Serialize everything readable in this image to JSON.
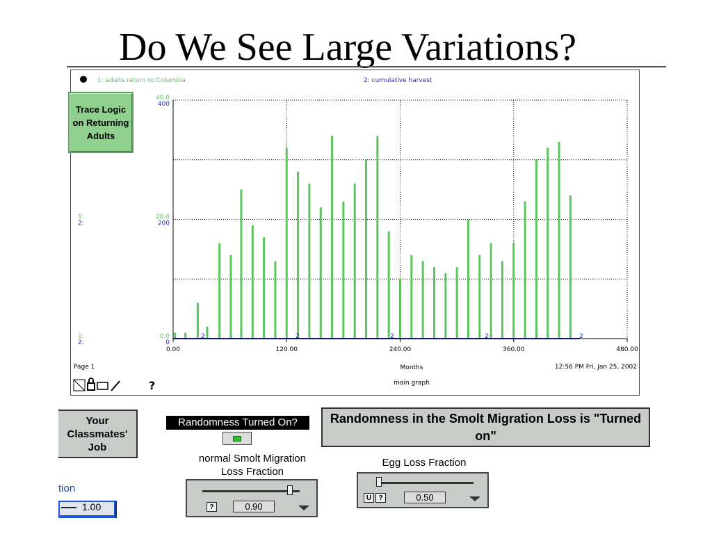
{
  "slide": {
    "title": "Do We See Large Variations?"
  },
  "graph": {
    "legend1": "1: adults return to Columbia",
    "legend2": "2: cumulative harvest",
    "scale1_top": "40.0",
    "scale2_top": "400",
    "scale1_mid": "20.0",
    "scale2_mid": "200",
    "scale1_bot": "0.0",
    "scale2_bot": "0",
    "marker1": "1:",
    "marker2": "2:",
    "xlabel": "Months",
    "footer_page": "Page 1",
    "footer_time": "12:56 PM  Fri, Jan 25, 2002",
    "footer_name": "main graph",
    "help_glyph": "?",
    "series1_color": "#5cc45c",
    "series2_color": "#1a2fd0"
  },
  "chart_data": {
    "type": "bar",
    "xlabel": "Months",
    "xlim": [
      0,
      480
    ],
    "x_ticks": [
      "0.00",
      "120.00",
      "240.00",
      "360.00",
      "480.00"
    ],
    "y_left_lim": [
      0,
      40
    ],
    "y_right_lim": [
      0,
      400
    ],
    "grid": true,
    "series": [
      {
        "name": "1: adults return to Columbia",
        "x": [
          2,
          13,
          26,
          36,
          49,
          61,
          72,
          84,
          96,
          108,
          120,
          132,
          144,
          156,
          168,
          180,
          192,
          204,
          216,
          228,
          240,
          252,
          264,
          276,
          288,
          300,
          312,
          324,
          336,
          348,
          360,
          372,
          384,
          396,
          408,
          420
        ],
        "y": [
          1,
          1,
          6,
          2,
          16,
          14,
          25,
          19,
          17,
          13,
          32,
          28,
          26,
          22,
          34,
          23,
          26,
          30,
          34,
          18,
          10,
          14,
          13,
          12,
          11,
          12,
          20,
          14,
          16,
          13,
          16,
          23,
          30,
          32,
          33,
          24
        ]
      },
      {
        "name": "2: cumulative harvest",
        "x": [
          0,
          100,
          200,
          300,
          400,
          430
        ],
        "y": [
          0,
          0,
          0,
          0,
          0,
          0
        ]
      }
    ]
  },
  "buttons": {
    "trace": "Trace Logic on Returning Adults",
    "classmates": "Your Classmates' Job",
    "turned_on": "Randomness in the Smolt Migration Loss is \"Turned on\""
  },
  "controls": {
    "randomness_label": "Randomness Turned On?",
    "smolt_label": "normal Smolt Migration Loss Fraction",
    "smolt_value": "0.90",
    "smolt_fraction": 0.9,
    "egg_label": "Egg Loss Fraction",
    "egg_value": "0.50",
    "egg_fraction": 0.5,
    "partial_label": "tion",
    "partial_value": "1.00",
    "help": "?",
    "u_glyph": "U"
  }
}
